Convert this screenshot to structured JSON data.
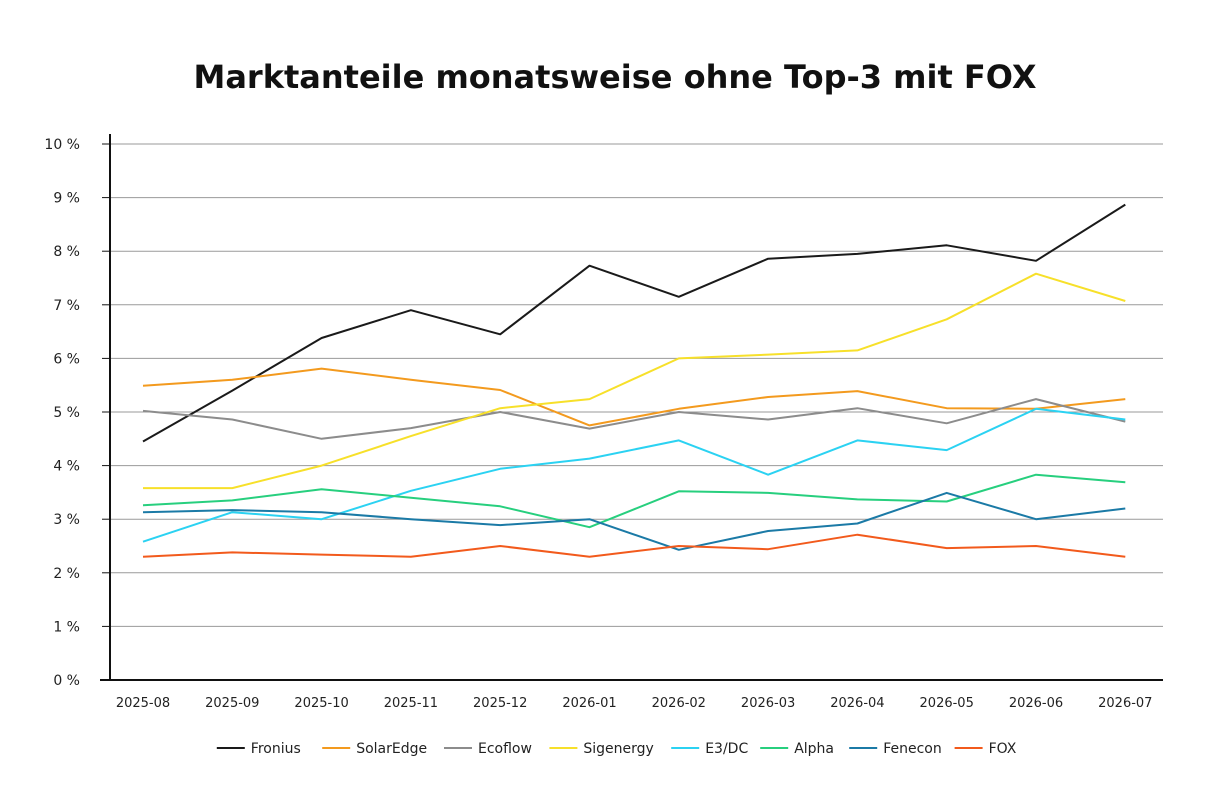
{
  "chart_data": {
    "type": "line",
    "title": "Marktanteile monatsweise ohne Top-3 mit FOX",
    "xlabel": "",
    "ylabel": "",
    "ylim": [
      0,
      10
    ],
    "y_tick_values": [
      0,
      1,
      2,
      3,
      4,
      5,
      6,
      7,
      8,
      9,
      10
    ],
    "y_tick_labels": [
      "0 %",
      "1 %",
      "2 %",
      "3 %",
      "4 %",
      "5 %",
      "6 %",
      "7 %",
      "8 %",
      "9 %",
      "10 %"
    ],
    "grid": true,
    "legend_position": "bottom",
    "categories": [
      "2025-08",
      "2025-09",
      "2025-10",
      "2025-11",
      "2025-12",
      "2026-01",
      "2026-02",
      "2026-03",
      "2026-04",
      "2026-05",
      "2026-06",
      "2026-07"
    ],
    "series": [
      {
        "name": "Fronius",
        "color": "#1a1a1a",
        "values": [
          4.45,
          5.4,
          6.38,
          6.9,
          6.45,
          7.73,
          7.15,
          7.86,
          7.95,
          8.11,
          7.82,
          8.87
        ]
      },
      {
        "name": "SolarEdge",
        "color": "#f39a1e",
        "values": [
          5.49,
          5.6,
          5.81,
          5.6,
          5.41,
          4.75,
          5.06,
          5.28,
          5.39,
          5.07,
          5.06,
          5.24
        ]
      },
      {
        "name": "Ecoflow",
        "color": "#8c8c8c",
        "values": [
          5.02,
          4.86,
          4.5,
          4.7,
          5.0,
          4.69,
          5.0,
          4.86,
          5.07,
          4.79,
          5.24,
          4.82
        ]
      },
      {
        "name": "Sigenergy",
        "color": "#f7e02a",
        "values": [
          3.58,
          3.58,
          4.0,
          4.55,
          5.07,
          5.24,
          6.0,
          6.07,
          6.15,
          6.73,
          7.58,
          7.07
        ]
      },
      {
        "name": "E3/DC",
        "color": "#2bd2f2",
        "values": [
          2.58,
          3.13,
          3.0,
          3.53,
          3.94,
          4.13,
          4.47,
          3.83,
          4.47,
          4.29,
          5.06,
          4.86
        ]
      },
      {
        "name": "Alpha",
        "color": "#27cf7e",
        "values": [
          3.26,
          3.35,
          3.56,
          3.4,
          3.24,
          2.85,
          3.52,
          3.49,
          3.37,
          3.33,
          3.83,
          3.69
        ]
      },
      {
        "name": "Fenecon",
        "color": "#1b7aa6",
        "values": [
          3.13,
          3.17,
          3.13,
          3.0,
          2.89,
          3.0,
          2.43,
          2.78,
          2.92,
          3.49,
          3.0,
          3.2
        ]
      },
      {
        "name": "FOX",
        "color": "#f25a1c",
        "values": [
          2.3,
          2.38,
          2.34,
          2.3,
          2.5,
          2.3,
          2.5,
          2.44,
          2.71,
          2.46,
          2.5,
          2.3
        ]
      }
    ]
  }
}
